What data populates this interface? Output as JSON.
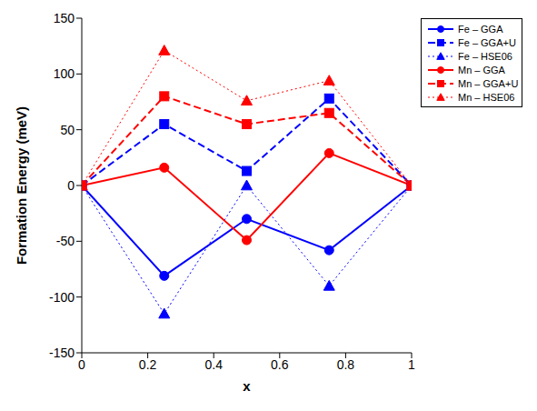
{
  "chart_data": {
    "type": "line",
    "x_label": "x",
    "y_label": "Formation Energy (meV)",
    "x": [
      0,
      0.25,
      0.5,
      0.75,
      1
    ],
    "xlim": [
      0,
      1
    ],
    "xticks": [
      0,
      0.2,
      0.4,
      0.6,
      0.8,
      1
    ],
    "ylim": [
      -150,
      150
    ],
    "yticks": [
      -150,
      -100,
      -50,
      0,
      50,
      100,
      150
    ],
    "grid": false,
    "legend": "upper right",
    "series": [
      {
        "name": "Fe – GGA",
        "color": "#0000ff",
        "marker": "circle",
        "line_style": "solid",
        "values": [
          0,
          -81,
          -30,
          -58,
          0
        ]
      },
      {
        "name": "Fe – GGA+U",
        "color": "#0000ff",
        "marker": "square",
        "line_style": "dashed",
        "values": [
          0,
          55,
          13,
          78,
          0
        ]
      },
      {
        "name": "Fe – HSE06",
        "color": "#0000ff",
        "marker": "triangle",
        "line_style": "dotted",
        "values": [
          0,
          -115,
          0,
          -90,
          0
        ]
      },
      {
        "name": "Mn – GGA",
        "color": "#ff0000",
        "marker": "circle",
        "line_style": "solid",
        "values": [
          0,
          16,
          -49,
          29,
          0
        ]
      },
      {
        "name": "Mn – GGA+U",
        "color": "#ff0000",
        "marker": "square",
        "line_style": "dashed",
        "values": [
          0,
          80,
          55,
          65,
          0
        ]
      },
      {
        "name": "Mn – HSE06",
        "color": "#ff0000",
        "marker": "triangle",
        "line_style": "dotted",
        "values": [
          0,
          121,
          76,
          94,
          0
        ]
      }
    ]
  }
}
